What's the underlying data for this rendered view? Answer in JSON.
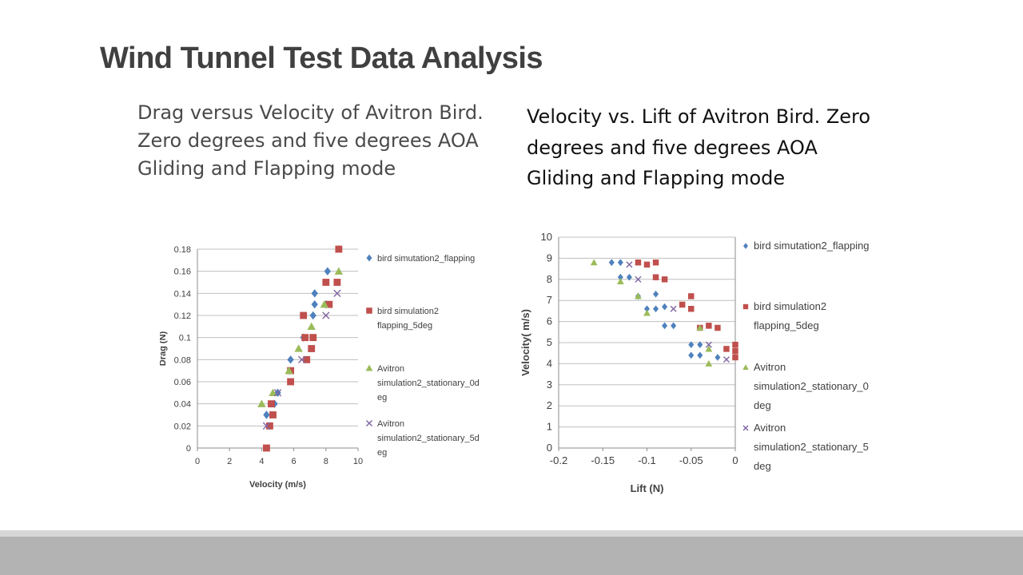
{
  "slide": {
    "title": "Wind Tunnel Test Data Analysis",
    "caption_left": "Drag versus Velocity of Avitron Bird. Zero degrees and five degrees AOA Gliding and Flapping mode",
    "caption_right": "Velocity vs. Lift of Avitron Bird. Zero degrees and five degrees AOA Gliding and Flapping mode"
  },
  "colors": {
    "title": "#404040",
    "series_blue": "#4f81bd",
    "series_red": "#c0504d",
    "series_green": "#9bbb59",
    "series_purple": "#8064a2",
    "grid": "#bfbfbf",
    "footer": "#b3b3b3"
  },
  "chart_data": [
    {
      "type": "scatter",
      "title": "",
      "xlabel": "Velocity (m/s)",
      "ylabel": "Drag (N)",
      "xlim": [
        0,
        10
      ],
      "ylim": [
        0,
        0.18
      ],
      "x_ticks": [
        "0",
        "2",
        "4",
        "6",
        "8",
        "10"
      ],
      "y_ticks": [
        "0",
        "0.02",
        "0.04",
        "0.06",
        "0.08",
        "0.1",
        "0.12",
        "0.14",
        "0.16",
        "0.18"
      ],
      "grid": "horizontal",
      "legend_position": "right",
      "series": [
        {
          "name": "bird simutation2_flapping",
          "legend_lines": [
            "bird simutation2_flapping"
          ],
          "marker": "diamond",
          "color": "#4f81bd",
          "points": [
            [
              4.3,
              0.03
            ],
            [
              4.8,
              0.04
            ],
            [
              5.0,
              0.05
            ],
            [
              5.8,
              0.08
            ],
            [
              6.6,
              0.1
            ],
            [
              7.2,
              0.12
            ],
            [
              7.3,
              0.13
            ],
            [
              7.3,
              0.14
            ],
            [
              8.0,
              0.13
            ],
            [
              8.1,
              0.16
            ]
          ]
        },
        {
          "name": "bird simulation2 flapping_5deg",
          "legend_lines": [
            "bird simulation2",
            "flapping_5deg"
          ],
          "marker": "square",
          "color": "#c0504d",
          "points": [
            [
              4.3,
              0.0
            ],
            [
              4.5,
              0.02
            ],
            [
              4.7,
              0.03
            ],
            [
              4.6,
              0.04
            ],
            [
              5.8,
              0.06
            ],
            [
              5.8,
              0.07
            ],
            [
              6.8,
              0.08
            ],
            [
              6.7,
              0.1
            ],
            [
              7.1,
              0.09
            ],
            [
              7.2,
              0.1
            ],
            [
              6.6,
              0.12
            ],
            [
              8.0,
              0.15
            ],
            [
              8.2,
              0.13
            ],
            [
              8.7,
              0.15
            ],
            [
              8.8,
              0.18
            ]
          ]
        },
        {
          "name": "Avitron simulation2_stationary_0deg",
          "legend_lines": [
            "Avitron",
            "simulation2_stationary_0d",
            "eg"
          ],
          "marker": "triangle",
          "color": "#9bbb59",
          "points": [
            [
              4.0,
              0.04
            ],
            [
              4.7,
              0.05
            ],
            [
              5.7,
              0.07
            ],
            [
              6.3,
              0.09
            ],
            [
              7.1,
              0.11
            ],
            [
              7.9,
              0.13
            ],
            [
              8.8,
              0.16
            ]
          ]
        },
        {
          "name": "Avitron simulation2_stationary_5deg",
          "legend_lines": [
            "Avitron",
            "simulation2_stationary_5d",
            "eg"
          ],
          "marker": "x",
          "color": "#8064a2",
          "points": [
            [
              4.3,
              0.02
            ],
            [
              5.0,
              0.05
            ],
            [
              6.5,
              0.08
            ],
            [
              8.0,
              0.12
            ],
            [
              8.7,
              0.14
            ]
          ]
        }
      ]
    },
    {
      "type": "scatter",
      "title": "",
      "xlabel": "Lift (N)",
      "ylabel": "Velocity( m/s)",
      "xlim": [
        -0.2,
        0
      ],
      "ylim": [
        0,
        10
      ],
      "x_ticks": [
        "-0.2",
        "-0.15",
        "-0.1",
        "-0.05",
        "0"
      ],
      "y_ticks": [
        "0",
        "1",
        "2",
        "3",
        "4",
        "5",
        "6",
        "7",
        "8",
        "9",
        "10"
      ],
      "grid": "horizontal",
      "legend_position": "right",
      "series": [
        {
          "name": "bird simutation2_flapping",
          "legend_lines": [
            "bird simutation2_flapping"
          ],
          "marker": "diamond",
          "color": "#4f81bd",
          "points": [
            [
              -0.14,
              8.8
            ],
            [
              -0.13,
              8.8
            ],
            [
              -0.13,
              8.1
            ],
            [
              -0.12,
              8.1
            ],
            [
              -0.09,
              7.3
            ],
            [
              -0.11,
              7.2
            ],
            [
              -0.1,
              6.6
            ],
            [
              -0.09,
              6.6
            ],
            [
              -0.08,
              6.7
            ],
            [
              -0.08,
              5.8
            ],
            [
              -0.07,
              5.8
            ],
            [
              -0.05,
              4.9
            ],
            [
              -0.04,
              4.9
            ],
            [
              -0.05,
              4.4
            ],
            [
              -0.04,
              4.4
            ],
            [
              -0.02,
              4.3
            ]
          ]
        },
        {
          "name": "bird simulation2 flapping_5deg",
          "legend_lines": [
            "bird simulation2",
            "flapping_5deg"
          ],
          "marker": "square",
          "color": "#c0504d",
          "points": [
            [
              -0.11,
              8.8
            ],
            [
              -0.1,
              8.7
            ],
            [
              -0.09,
              8.8
            ],
            [
              -0.09,
              8.1
            ],
            [
              -0.08,
              8.0
            ],
            [
              -0.06,
              6.8
            ],
            [
              -0.05,
              7.2
            ],
            [
              -0.05,
              6.6
            ],
            [
              -0.04,
              5.7
            ],
            [
              -0.03,
              5.8
            ],
            [
              -0.02,
              5.7
            ],
            [
              -0.01,
              4.7
            ],
            [
              0.0,
              4.9
            ],
            [
              0.0,
              4.6
            ],
            [
              0.0,
              4.3
            ]
          ]
        },
        {
          "name": "Avitron simulation2_stationary_0deg",
          "legend_lines": [
            "Avitron",
            "simulation2_stationary_0",
            "deg"
          ],
          "marker": "triangle",
          "color": "#9bbb59",
          "points": [
            [
              -0.16,
              8.8
            ],
            [
              -0.13,
              7.9
            ],
            [
              -0.11,
              7.2
            ],
            [
              -0.1,
              6.4
            ],
            [
              -0.04,
              5.7
            ],
            [
              -0.03,
              4.7
            ],
            [
              -0.03,
              4.0
            ]
          ]
        },
        {
          "name": "Avitron simulation2_stationary_5deg",
          "legend_lines": [
            "Avitron",
            "simulation2_stationary_5",
            "deg"
          ],
          "marker": "x",
          "color": "#8064a2",
          "points": [
            [
              -0.12,
              8.7
            ],
            [
              -0.11,
              8.0
            ],
            [
              -0.07,
              6.6
            ],
            [
              -0.03,
              4.9
            ],
            [
              -0.01,
              4.2
            ]
          ]
        }
      ]
    }
  ]
}
